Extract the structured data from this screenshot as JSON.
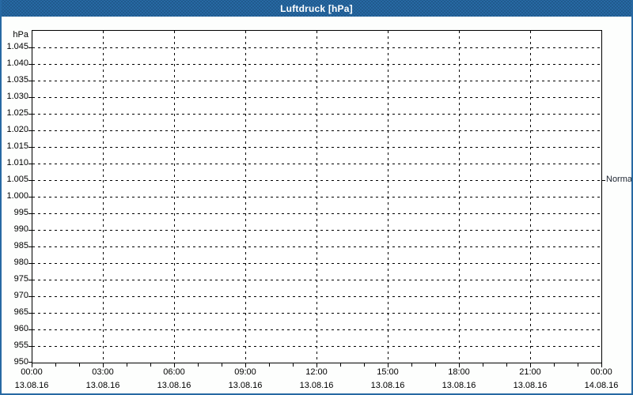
{
  "title_bar": {
    "title": "Luftdruck [hPa]"
  },
  "colors": {
    "titlebar_blue": "#2769a3",
    "titlebar_dot_blue": "#20598c",
    "frame_blue": "#2769a3",
    "title_text": "#ffffff",
    "axis_black": "#000000",
    "plot_bg": "#ffffff",
    "window_bg": "#fdfefd",
    "normal_text": "#1c2430"
  },
  "chart_data": {
    "type": "line",
    "title": "Luftdruck [hPa]",
    "ylabel_unit": "hPa",
    "ylim": [
      950,
      1045
    ],
    "ytick_step": 5,
    "ytick_values": [
      1045,
      1040,
      1035,
      1030,
      1025,
      1020,
      1015,
      1010,
      1005,
      1000,
      995,
      990,
      985,
      980,
      975,
      970,
      965,
      960,
      955,
      950
    ],
    "ytick_labels": [
      "1.045",
      "1.040",
      "1.035",
      "1.030",
      "1.025",
      "1.020",
      "1.015",
      "1.010",
      "1.005",
      "1.000",
      "995",
      "990",
      "985",
      "980",
      "975",
      "970",
      "965",
      "960",
      "955",
      "950"
    ],
    "grid": true,
    "x_total_hours": 24,
    "x_minor_tick_hours": 1,
    "x_major_tick_hours": 3,
    "xticks": [
      {
        "time": "00:00",
        "date": "13.08.16"
      },
      {
        "time": "03:00",
        "date": "13.08.16"
      },
      {
        "time": "06:00",
        "date": "13.08.16"
      },
      {
        "time": "09:00",
        "date": "13.08.16"
      },
      {
        "time": "12:00",
        "date": "13.08.16"
      },
      {
        "time": "15:00",
        "date": "13.08.16"
      },
      {
        "time": "18:00",
        "date": "13.08.16"
      },
      {
        "time": "21:00",
        "date": "13.08.16"
      },
      {
        "time": "00:00",
        "date": "14.08.16"
      }
    ],
    "right_axis_marker": {
      "text": "Normal",
      "value": 1005
    },
    "series": []
  }
}
